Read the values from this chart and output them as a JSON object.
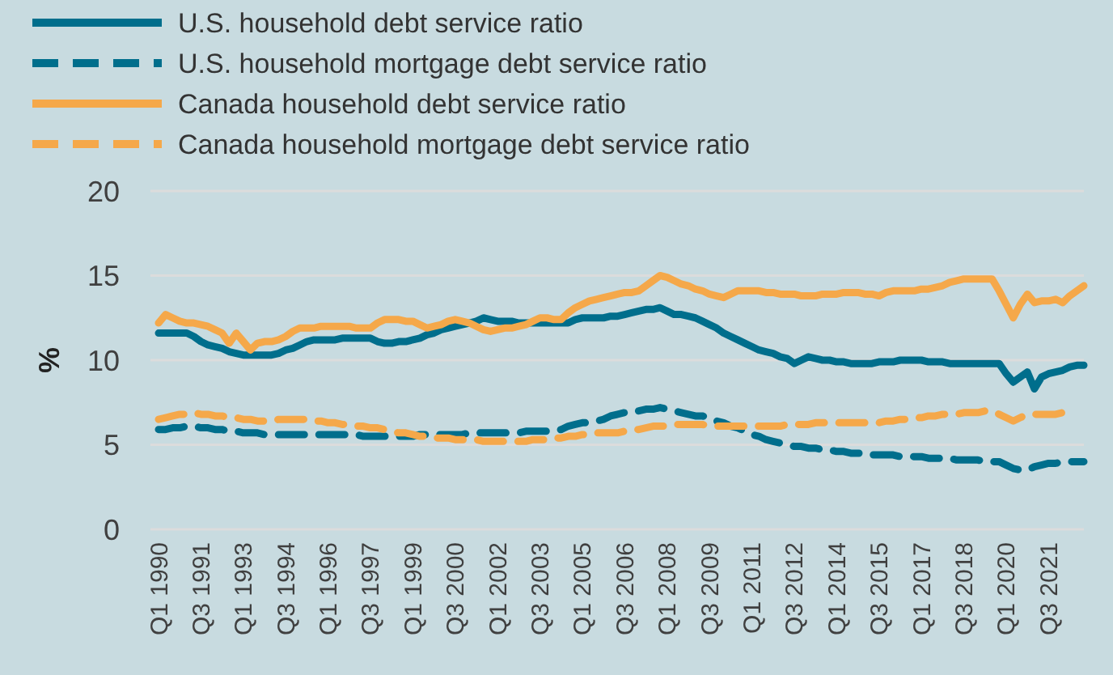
{
  "chart_data": {
    "type": "line",
    "ylabel": "%",
    "ylim": [
      0,
      20
    ],
    "yticks": [
      0,
      5,
      10,
      15,
      20
    ],
    "categories": [
      "Q1 1990",
      null,
      null,
      null,
      null,
      null,
      "Q3 1991",
      null,
      null,
      null,
      null,
      null,
      "Q1 1993",
      null,
      null,
      null,
      null,
      null,
      "Q3 1994",
      null,
      null,
      null,
      null,
      null,
      "Q1 1996",
      null,
      null,
      null,
      null,
      null,
      "Q3 1997",
      null,
      null,
      null,
      null,
      null,
      "Q1 1999",
      null,
      null,
      null,
      null,
      null,
      "Q3 2000",
      null,
      null,
      null,
      null,
      null,
      "Q1 2002",
      null,
      null,
      null,
      null,
      null,
      "Q3 2003",
      null,
      null,
      null,
      null,
      null,
      "Q1 2005",
      null,
      null,
      null,
      null,
      null,
      "Q3 2006",
      null,
      null,
      null,
      null,
      null,
      "Q1 2008",
      null,
      null,
      null,
      null,
      null,
      "Q3 2009",
      null,
      null,
      null,
      null,
      null,
      "Q1 2011",
      null,
      null,
      null,
      null,
      null,
      "Q3 2012",
      null,
      null,
      null,
      null,
      null,
      "Q1 2014",
      null,
      null,
      null,
      null,
      null,
      "Q3 2015",
      null,
      null,
      null,
      null,
      null,
      "Q1 2017",
      null,
      null,
      null,
      null,
      null,
      "Q3 2018",
      null,
      null,
      null,
      null,
      null,
      "Q1 2020",
      null,
      null,
      null,
      null,
      null,
      "Q3 2021",
      null,
      null,
      null,
      null,
      null
    ],
    "grid": "y",
    "legend": "top left",
    "series": [
      {
        "name": "U.S. household debt service ratio",
        "color": "#006e8c",
        "line_style": "solid",
        "values": [
          11.6,
          11.6,
          11.6,
          11.6,
          11.6,
          11.4,
          11.1,
          10.9,
          10.8,
          10.7,
          10.5,
          10.4,
          10.3,
          10.3,
          10.3,
          10.3,
          10.3,
          10.4,
          10.6,
          10.7,
          10.9,
          11.1,
          11.2,
          11.2,
          11.2,
          11.2,
          11.3,
          11.3,
          11.3,
          11.3,
          11.3,
          11.1,
          11.0,
          11.0,
          11.1,
          11.1,
          11.2,
          11.3,
          11.5,
          11.6,
          11.8,
          11.9,
          12.0,
          12.1,
          12.2,
          12.3,
          12.5,
          12.4,
          12.3,
          12.3,
          12.3,
          12.2,
          12.2,
          12.2,
          12.2,
          12.2,
          12.2,
          12.2,
          12.2,
          12.4,
          12.5,
          12.5,
          12.5,
          12.5,
          12.6,
          12.6,
          12.7,
          12.8,
          12.9,
          13.0,
          13.0,
          13.1,
          12.9,
          12.7,
          12.7,
          12.6,
          12.5,
          12.3,
          12.1,
          11.9,
          11.6,
          11.4,
          11.2,
          11.0,
          10.8,
          10.6,
          10.5,
          10.4,
          10.2,
          10.1,
          9.8,
          10.0,
          10.2,
          10.1,
          10.0,
          10.0,
          9.9,
          9.9,
          9.8,
          9.8,
          9.8,
          9.8,
          9.9,
          9.9,
          9.9,
          10.0,
          10.0,
          10.0,
          10.0,
          9.9,
          9.9,
          9.9,
          9.8,
          9.8,
          9.8,
          9.8,
          9.8,
          9.8,
          9.8,
          9.8,
          9.2,
          8.7,
          9.0,
          9.3,
          8.3,
          9.0,
          9.2,
          9.3,
          9.4,
          9.6,
          9.7,
          9.7
        ]
      },
      {
        "name": "U.S. household mortgage debt service ratio",
        "color": "#006e8c",
        "line_style": "dashed",
        "values": [
          5.9,
          5.9,
          6.0,
          6.0,
          6.1,
          6.1,
          6.0,
          6.0,
          5.9,
          5.9,
          5.8,
          5.8,
          5.7,
          5.7,
          5.7,
          5.6,
          5.6,
          5.6,
          5.6,
          5.6,
          5.6,
          5.6,
          5.6,
          5.6,
          5.6,
          5.6,
          5.6,
          5.6,
          5.6,
          5.5,
          5.5,
          5.5,
          5.5,
          5.5,
          5.5,
          5.5,
          5.5,
          5.6,
          5.6,
          5.6,
          5.6,
          5.6,
          5.6,
          5.6,
          5.7,
          5.7,
          5.7,
          5.7,
          5.7,
          5.7,
          5.7,
          5.7,
          5.8,
          5.8,
          5.8,
          5.8,
          5.8,
          5.9,
          6.1,
          6.2,
          6.3,
          6.3,
          6.4,
          6.5,
          6.7,
          6.8,
          6.9,
          7.0,
          7.0,
          7.1,
          7.1,
          7.2,
          7.1,
          7.0,
          6.9,
          6.8,
          6.7,
          6.7,
          6.6,
          6.4,
          6.3,
          6.1,
          6.0,
          5.8,
          5.6,
          5.5,
          5.3,
          5.2,
          5.1,
          5.0,
          4.9,
          4.9,
          4.8,
          4.8,
          4.7,
          4.7,
          4.6,
          4.6,
          4.5,
          4.5,
          4.5,
          4.4,
          4.4,
          4.4,
          4.4,
          4.3,
          4.3,
          4.3,
          4.3,
          4.2,
          4.2,
          4.2,
          4.2,
          4.1,
          4.1,
          4.1,
          4.1,
          4.0,
          4.0,
          4.0,
          3.8,
          3.6,
          3.5,
          3.5,
          3.7,
          3.8,
          3.9,
          3.9,
          4.0,
          4.0,
          4.0,
          4.0
        ]
      },
      {
        "name": "Canada household debt service ratio",
        "color": "#f5a84a",
        "line_style": "solid",
        "values": [
          12.2,
          12.7,
          12.5,
          12.3,
          12.2,
          12.2,
          12.1,
          12.0,
          11.8,
          11.6,
          11.0,
          11.6,
          11.1,
          10.6,
          11.0,
          11.1,
          11.1,
          11.2,
          11.4,
          11.7,
          11.9,
          11.9,
          11.9,
          12.0,
          12.0,
          12.0,
          12.0,
          12.0,
          11.9,
          11.9,
          11.9,
          12.2,
          12.4,
          12.4,
          12.4,
          12.3,
          12.3,
          12.1,
          11.9,
          12.0,
          12.1,
          12.3,
          12.4,
          12.3,
          12.2,
          12.0,
          11.8,
          11.7,
          11.8,
          11.9,
          11.9,
          12.0,
          12.1,
          12.3,
          12.5,
          12.5,
          12.4,
          12.4,
          12.8,
          13.1,
          13.3,
          13.5,
          13.6,
          13.7,
          13.8,
          13.9,
          14.0,
          14.0,
          14.1,
          14.4,
          14.7,
          15.0,
          14.9,
          14.7,
          14.5,
          14.4,
          14.2,
          14.1,
          13.9,
          13.8,
          13.7,
          13.9,
          14.1,
          14.1,
          14.1,
          14.1,
          14.0,
          14.0,
          13.9,
          13.9,
          13.9,
          13.8,
          13.8,
          13.8,
          13.9,
          13.9,
          13.9,
          14.0,
          14.0,
          14.0,
          13.9,
          13.9,
          13.8,
          14.0,
          14.1,
          14.1,
          14.1,
          14.1,
          14.2,
          14.2,
          14.3,
          14.4,
          14.6,
          14.7,
          14.8,
          14.8,
          14.8,
          14.8,
          14.8,
          14.1,
          13.3,
          12.5,
          13.3,
          13.9,
          13.4,
          13.5,
          13.5,
          13.6,
          13.4,
          13.8,
          14.1,
          14.4
        ]
      },
      {
        "name": "Canada household mortgage debt service ratio",
        "color": "#f5a84a",
        "line_style": "dashed",
        "values": [
          6.5,
          6.6,
          6.7,
          6.8,
          6.8,
          6.9,
          6.8,
          6.8,
          6.7,
          6.7,
          6.6,
          6.6,
          6.5,
          6.5,
          6.4,
          6.4,
          6.4,
          6.5,
          6.5,
          6.5,
          6.5,
          6.5,
          6.4,
          6.4,
          6.3,
          6.3,
          6.2,
          6.2,
          6.1,
          6.1,
          6.0,
          6.0,
          5.9,
          5.8,
          5.7,
          5.7,
          5.6,
          5.5,
          5.5,
          5.4,
          5.4,
          5.4,
          5.3,
          5.3,
          5.3,
          5.3,
          5.2,
          5.2,
          5.2,
          5.2,
          5.2,
          5.2,
          5.2,
          5.3,
          5.3,
          5.3,
          5.4,
          5.4,
          5.5,
          5.5,
          5.6,
          5.6,
          5.7,
          5.7,
          5.7,
          5.7,
          5.8,
          5.9,
          5.9,
          6.0,
          6.1,
          6.1,
          6.1,
          6.2,
          6.2,
          6.2,
          6.2,
          6.2,
          6.1,
          6.1,
          6.1,
          6.1,
          6.1,
          6.1,
          6.1,
          6.1,
          6.1,
          6.1,
          6.1,
          6.2,
          6.2,
          6.2,
          6.2,
          6.3,
          6.3,
          6.3,
          6.3,
          6.3,
          6.3,
          6.3,
          6.3,
          6.3,
          6.3,
          6.4,
          6.4,
          6.5,
          6.5,
          6.6,
          6.6,
          6.7,
          6.7,
          6.8,
          6.8,
          6.8,
          6.9,
          6.9,
          6.9,
          7.0,
          7.0,
          6.8,
          6.6,
          6.4,
          6.6,
          6.8,
          6.8,
          6.8,
          6.8,
          6.8,
          6.9,
          7.1,
          null,
          null
        ]
      }
    ]
  }
}
